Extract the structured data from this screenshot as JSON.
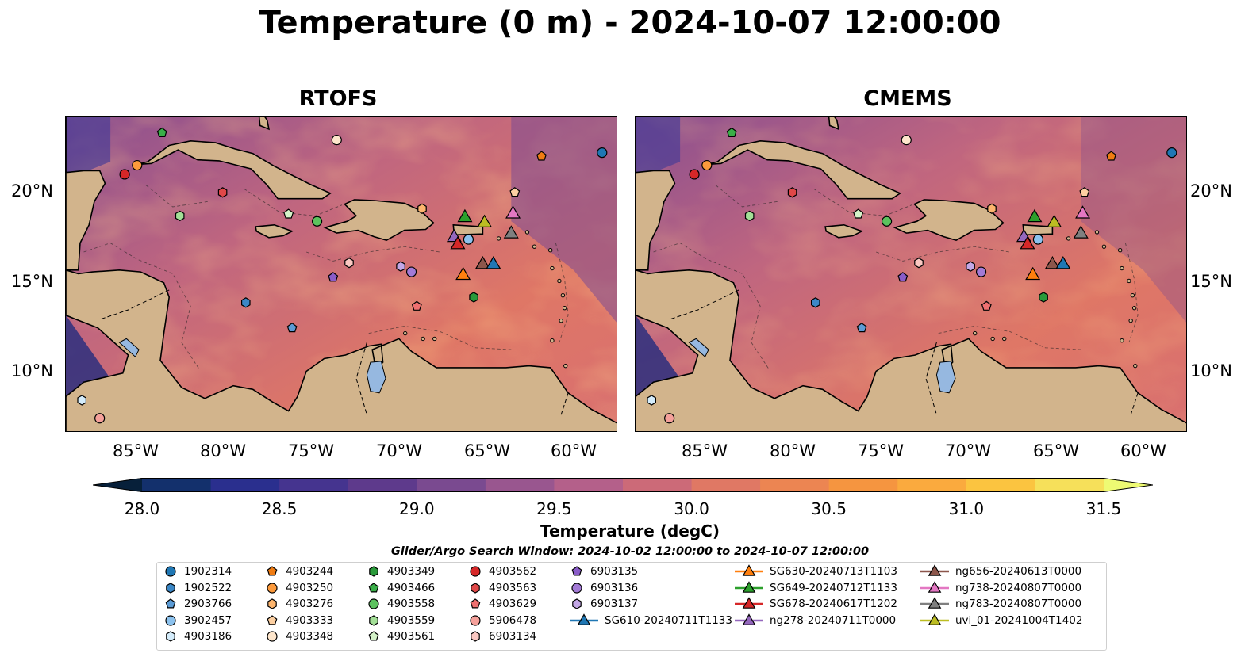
{
  "title": "Temperature (0 m) - 2024-10-07 12:00:00",
  "panels": [
    {
      "title": "RTOFS"
    },
    {
      "title": "CMEMS"
    }
  ],
  "lat_labels": [
    "20°N",
    "15°N",
    "10°N"
  ],
  "lon_labels": [
    "85°W",
    "80°W",
    "75°W",
    "70°W",
    "65°W",
    "60°W"
  ],
  "colorbar": {
    "label": "Temperature (degC)",
    "ticks": [
      "28.0",
      "28.5",
      "29.0",
      "29.5",
      "30.0",
      "30.5",
      "31.0",
      "31.5"
    ],
    "min": 28.0,
    "max": 31.5,
    "colors": [
      "#07203a",
      "#13306c",
      "#2a2f8e",
      "#45348f",
      "#5e3a8c",
      "#7a4a90",
      "#99568f",
      "#b4608a",
      "#cc6a78",
      "#e07864",
      "#ec8552",
      "#f59540",
      "#faaa3e",
      "#fbc440",
      "#f6e05a",
      "#eefa73"
    ]
  },
  "search_window": "Glider/Argo Search Window: 2024-10-02 12:00:00 to 2024-10-07 12:00:00",
  "legend": [
    {
      "label": "1902314",
      "marker": "circle",
      "color": "#1f77b4"
    },
    {
      "label": "1902522",
      "marker": "hexagon",
      "color": "#3b87c6"
    },
    {
      "label": "2903766",
      "marker": "pentagon",
      "color": "#5b9bd5"
    },
    {
      "label": "3902457",
      "marker": "circle",
      "color": "#8cc2ee"
    },
    {
      "label": "4903186",
      "marker": "hexagon",
      "color": "#d4ecfb"
    },
    {
      "label": "4903244",
      "marker": "pentagon",
      "color": "#f07c12"
    },
    {
      "label": "4903250",
      "marker": "circle",
      "color": "#fc9a3c"
    },
    {
      "label": "4903276",
      "marker": "hexagon",
      "color": "#fdb56e"
    },
    {
      "label": "4903333",
      "marker": "pentagon",
      "color": "#fdd0a2"
    },
    {
      "label": "4903348",
      "marker": "circle",
      "color": "#fee6cc"
    },
    {
      "label": "4903349",
      "marker": "hexagon",
      "color": "#2a9a3a"
    },
    {
      "label": "4903466",
      "marker": "pentagon",
      "color": "#3aae48"
    },
    {
      "label": "4903558",
      "marker": "circle",
      "color": "#5cc25e"
    },
    {
      "label": "4903559",
      "marker": "hexagon",
      "color": "#a3df97"
    },
    {
      "label": "4903561",
      "marker": "pentagon",
      "color": "#d4f2c8"
    },
    {
      "label": "4903562",
      "marker": "circle",
      "color": "#d62728"
    },
    {
      "label": "4903563",
      "marker": "hexagon",
      "color": "#e04848"
    },
    {
      "label": "4903629",
      "marker": "pentagon",
      "color": "#ee7070"
    },
    {
      "label": "5906478",
      "marker": "circle",
      "color": "#f5a09a"
    },
    {
      "label": "6903134",
      "marker": "hexagon",
      "color": "#fbc8c2"
    },
    {
      "label": "6903135",
      "marker": "pentagon",
      "color": "#8a5cc8"
    },
    {
      "label": "6903136",
      "marker": "circle",
      "color": "#a37ad6"
    },
    {
      "label": "6903137",
      "marker": "hexagon",
      "color": "#c3a7e6"
    },
    {
      "label": "SG610-20240711T1133",
      "marker": "triangle-line",
      "color": "#1f77b4"
    },
    {
      "label": "SG630-20240713T1103",
      "marker": "triangle-line",
      "color": "#ff7f0e"
    },
    {
      "label": "SG649-20240712T1133",
      "marker": "triangle-line",
      "color": "#2ca02c"
    },
    {
      "label": "SG678-20240617T1202",
      "marker": "triangle-line",
      "color": "#d62728"
    },
    {
      "label": "ng278-20240711T0000",
      "marker": "triangle-line",
      "color": "#9467bd"
    },
    {
      "label": "ng656-20240613T0000",
      "marker": "triangle-line",
      "color": "#8c564b"
    },
    {
      "label": "ng738-20240807T0000",
      "marker": "triangle-line",
      "color": "#e377c2"
    },
    {
      "label": "ng783-20240807T0000",
      "marker": "triangle-line",
      "color": "#7f7f7f"
    },
    {
      "label": "uvi_01-20241004T1402",
      "marker": "triangle-line",
      "color": "#bcbd22"
    }
  ],
  "map_extent": {
    "lon": [
      -89,
      -58
    ],
    "lat": [
      7,
      24.5
    ]
  },
  "observations": [
    {
      "id": "1902314",
      "lon": -58.9,
      "lat": 22.5
    },
    {
      "id": "4903244",
      "lon": -62.3,
      "lat": 22.3
    },
    {
      "id": "4903250",
      "lon": -85.0,
      "lat": 21.8
    },
    {
      "id": "4903562",
      "lon": -85.7,
      "lat": 21.3
    },
    {
      "id": "4903466",
      "lon": -83.6,
      "lat": 23.6
    },
    {
      "id": "4903348",
      "lon": -73.8,
      "lat": 23.2
    },
    {
      "id": "4903563",
      "lon": -80.2,
      "lat": 20.3
    },
    {
      "id": "4903333",
      "lon": -63.8,
      "lat": 20.3
    },
    {
      "id": "4903559",
      "lon": -82.6,
      "lat": 19.0
    },
    {
      "id": "4903561",
      "lon": -76.5,
      "lat": 19.1
    },
    {
      "id": "4903558",
      "lon": -74.9,
      "lat": 18.7
    },
    {
      "id": "4903276",
      "lon": -69.0,
      "lat": 19.4
    },
    {
      "id": "3902457",
      "lon": -66.4,
      "lat": 17.7
    },
    {
      "id": "6903134",
      "lon": -73.1,
      "lat": 16.4
    },
    {
      "id": "6903136",
      "lon": -69.6,
      "lat": 15.9
    },
    {
      "id": "6903137",
      "lon": -70.2,
      "lat": 16.2
    },
    {
      "id": "6903135",
      "lon": -74.0,
      "lat": 15.6
    },
    {
      "id": "4903349",
      "lon": -66.1,
      "lat": 14.5
    },
    {
      "id": "4903629",
      "lon": -69.3,
      "lat": 14.0
    },
    {
      "id": "1902522",
      "lon": -78.9,
      "lat": 14.2
    },
    {
      "id": "2903766",
      "lon": -76.3,
      "lat": 12.8
    },
    {
      "id": "4903186",
      "lon": -88.1,
      "lat": 8.8
    },
    {
      "id": "5906478",
      "lon": -87.1,
      "lat": 7.8
    },
    {
      "id": "SG649-20240712T1133",
      "lon": -66.6,
      "lat": 18.9
    },
    {
      "id": "uvi_01-20241004T1402",
      "lon": -65.5,
      "lat": 18.6
    },
    {
      "id": "ng738-20240807T0000",
      "lon": -63.9,
      "lat": 19.1
    },
    {
      "id": "ng278-20240711T0000",
      "lon": -67.2,
      "lat": 17.8
    },
    {
      "id": "SG678-20240617T1202",
      "lon": -67.0,
      "lat": 17.4
    },
    {
      "id": "ng783-20240807T0000",
      "lon": -64.0,
      "lat": 18.0
    },
    {
      "id": "SG630-20240713T1103",
      "lon": -66.7,
      "lat": 15.7
    },
    {
      "id": "ng656-20240613T0000",
      "lon": -65.6,
      "lat": 16.3
    },
    {
      "id": "SG610-20240711T1133",
      "lon": -65.0,
      "lat": 16.3
    }
  ]
}
